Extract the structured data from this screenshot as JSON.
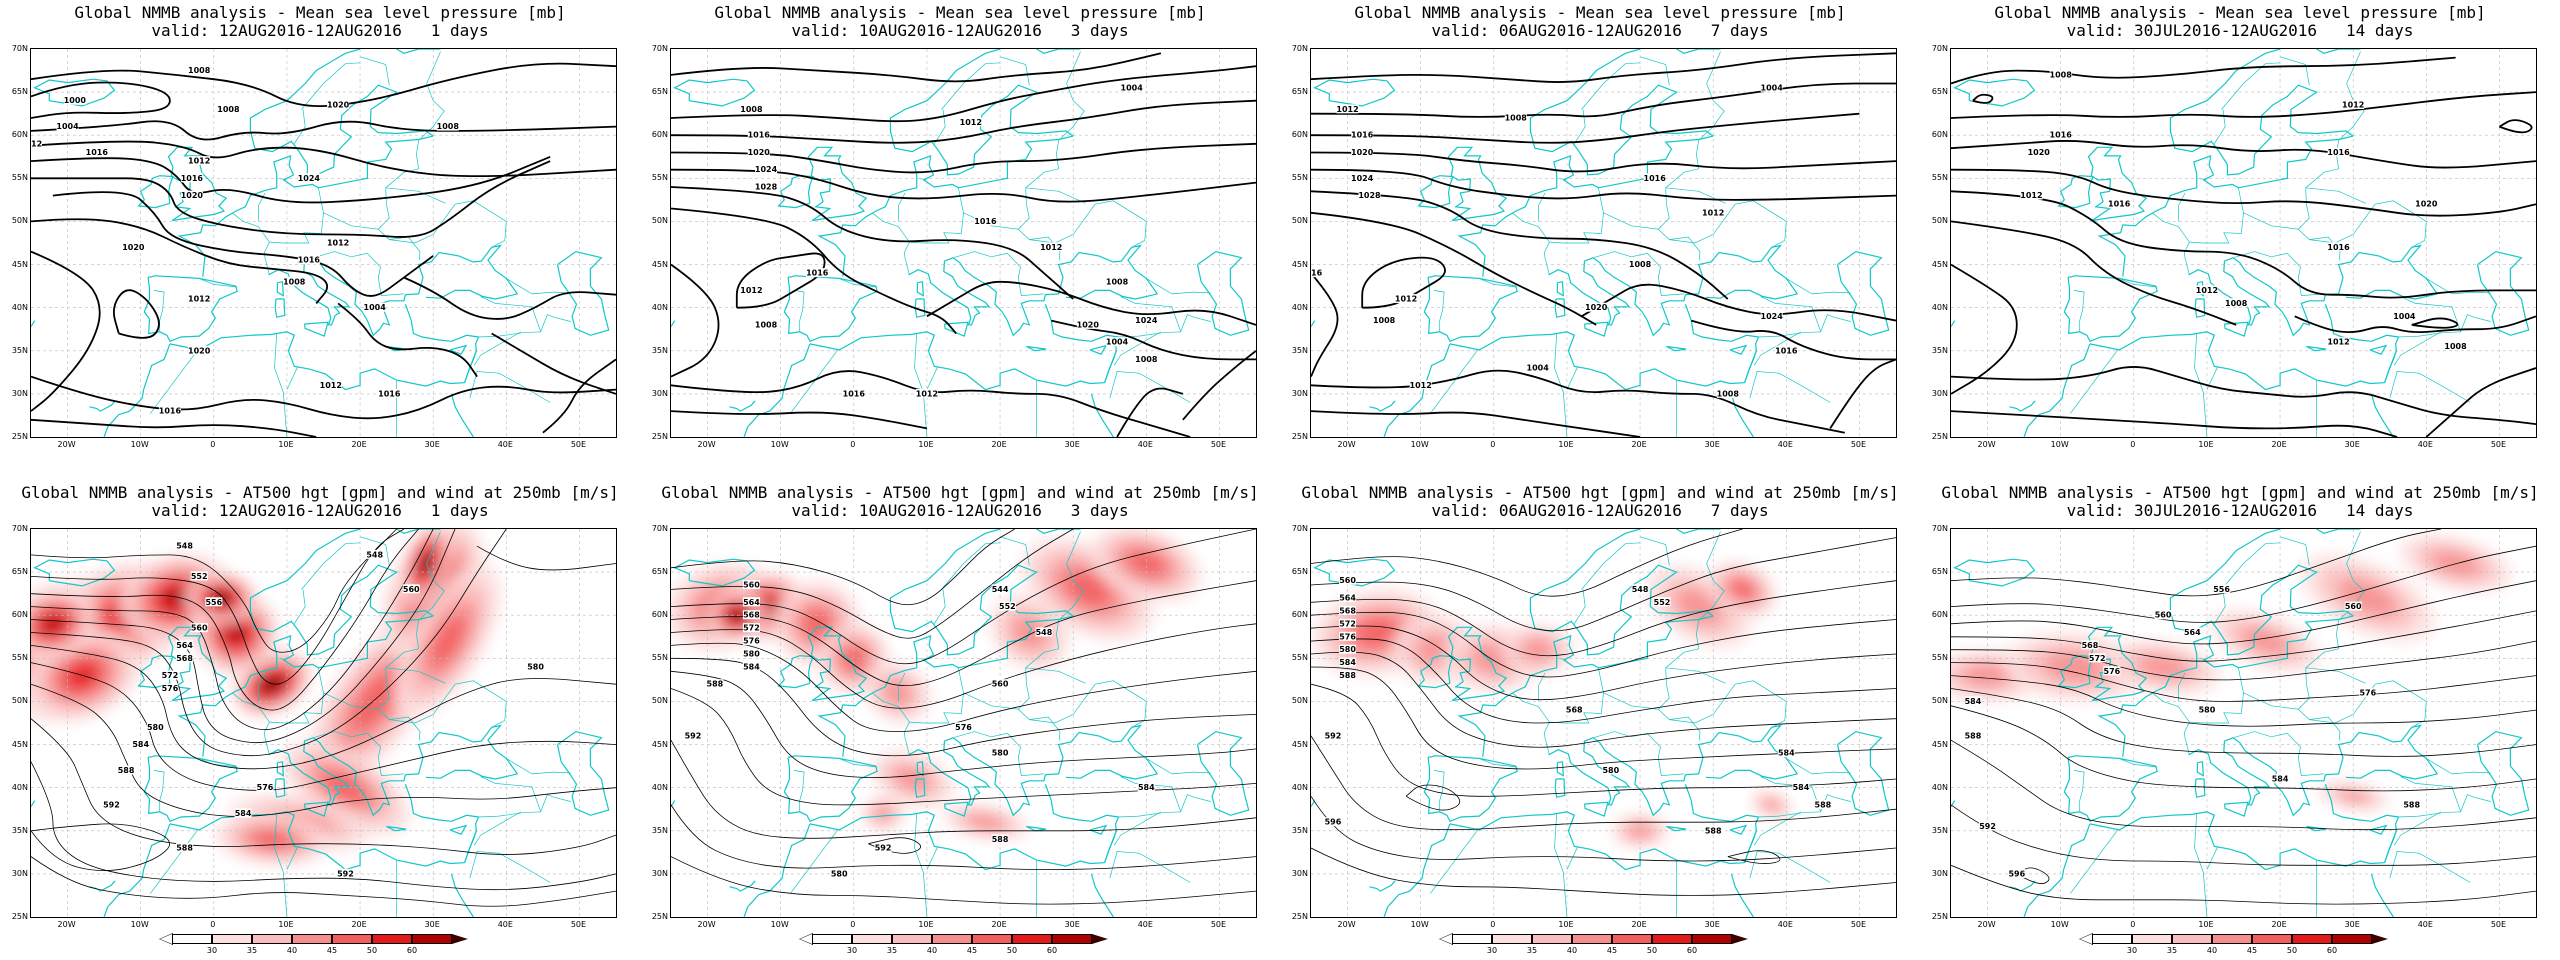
{
  "colors": {
    "coast": "#11c7c7",
    "isobar": "#000000",
    "jet": [
      "#fde1e1",
      "#fbbebe",
      "#f78e8e",
      "#f25e5e",
      "#e21a1a",
      "#b00000",
      "#5a0000"
    ]
  },
  "lat_labels": [
    "70N",
    "65N",
    "60N",
    "55N",
    "50N",
    "45N",
    "40N",
    "35N",
    "30N",
    "25N"
  ],
  "lon_labels": [
    "20W",
    "10W",
    "0",
    "10E",
    "20E",
    "30E",
    "40E",
    "50E"
  ],
  "colorbar_labels": [
    "30",
    "35",
    "40",
    "45",
    "50",
    "60"
  ],
  "panels": [
    {
      "title1": "Global NMMB analysis - Mean sea level pressure [mb]",
      "title2": "valid: 12AUG2016-12AUG2016   1 days",
      "kind": "mslp",
      "contour_labels": [
        "1008",
        "1000",
        "1004",
        "1008",
        "1012",
        "1016",
        "1012",
        "1020",
        "1016",
        "1024",
        "1008",
        "1012",
        "1020",
        "1016",
        "1012",
        "1020",
        "1008",
        "1004",
        "1020",
        "1016",
        "1012",
        "1016"
      ]
    },
    {
      "title1": "Global NMMB analysis - Mean sea level pressure [mb]",
      "title2": "valid: 10AUG2016-12AUG2016   3 days",
      "kind": "mslp",
      "contour_labels": [
        "1004",
        "1012",
        "1008",
        "1016",
        "1020",
        "1024",
        "1028",
        "1016",
        "1012",
        "1008",
        "1020",
        "1024",
        "1016",
        "1012",
        "1008",
        "1004",
        "1016",
        "1012",
        "1008"
      ]
    },
    {
      "title1": "Global NMMB analysis - Mean sea level pressure [mb]",
      "title2": "valid: 06AUG2016-12AUG2016   7 days",
      "kind": "mslp",
      "contour_labels": [
        "1004",
        "1012",
        "1008",
        "1016",
        "1020",
        "1024",
        "1028",
        "1016",
        "1012",
        "1008",
        "1020",
        "1024",
        "1016",
        "1012",
        "1008",
        "1004",
        "1016",
        "1012",
        "1008"
      ]
    },
    {
      "title1": "Global NMMB analysis - Mean sea level pressure [mb]",
      "title2": "valid: 30JUL2016-12AUG2016   14 days",
      "kind": "mslp",
      "contour_labels": [
        "1008",
        "1012",
        "1016",
        "1020",
        "1016",
        "1012",
        "1016",
        "1020",
        "1016",
        "1012",
        "1008",
        "1004",
        "1012",
        "1008"
      ]
    },
    {
      "title1": "Global NMMB analysis - AT500 hgt [gpm] and wind at 250mb [m/s]",
      "title2": "valid: 12AUG2016-12AUG2016   1 days",
      "kind": "z500",
      "contour_labels": [
        "548",
        "552",
        "556",
        "560",
        "564",
        "568",
        "572",
        "576",
        "580",
        "584",
        "588",
        "592",
        "548",
        "560",
        "576",
        "584",
        "588",
        "592",
        "580"
      ]
    },
    {
      "title1": "Global NMMB analysis - AT500 hgt [gpm] and wind at 250mb [m/s]",
      "title2": "valid: 10AUG2016-12AUG2016   3 days",
      "kind": "z500",
      "contour_labels": [
        "560",
        "564",
        "568",
        "572",
        "576",
        "580",
        "584",
        "588",
        "592",
        "544",
        "552",
        "548",
        "560",
        "576",
        "580",
        "584",
        "588",
        "592",
        "580"
      ]
    },
    {
      "title1": "Global NMMB analysis - AT500 hgt [gpm] and wind at 250mb [m/s]",
      "title2": "valid: 06AUG2016-12AUG2016   7 days",
      "kind": "z500",
      "contour_labels": [
        "560",
        "564",
        "568",
        "572",
        "576",
        "580",
        "584",
        "588",
        "592",
        "596",
        "548",
        "552",
        "568",
        "580",
        "584",
        "588",
        "584",
        "588"
      ]
    },
    {
      "title1": "Global NMMB analysis - AT500 hgt [gpm] and wind at 250mb [m/s]",
      "title2": "valid: 30JUL2016-12AUG2016   14 days",
      "kind": "z500",
      "contour_labels": [
        "556",
        "560",
        "564",
        "568",
        "572",
        "576",
        "580",
        "584",
        "588",
        "592",
        "596",
        "560",
        "576",
        "584",
        "588"
      ]
    }
  ]
}
